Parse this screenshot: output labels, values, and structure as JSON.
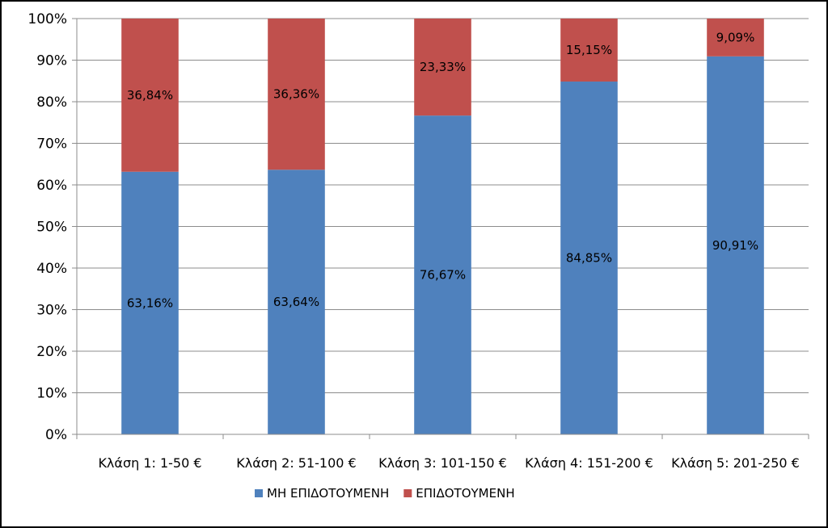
{
  "chart_data": {
    "type": "bar",
    "stacked": true,
    "categories": [
      "Κλάση 1:  1-50 €",
      "Κλάση 2:  51-100 €",
      "Κλάση 3:  101-150 €",
      "Κλάση 4:  151-200 €",
      "Κλάση 5:  201-250 €"
    ],
    "series": [
      {
        "name": "ΜΗ ΕΠΙΔΟΤΟΥΜΕΝΗ",
        "color": "#4f81bd",
        "values": [
          63.16,
          63.64,
          76.67,
          84.85,
          90.91
        ],
        "labels": [
          "63,16%",
          "63,64%",
          "76,67%",
          "84,85%",
          "90,91%"
        ]
      },
      {
        "name": "ΕΠΙΔΟΤΟΥΜΕΝΗ",
        "color": "#c0504d",
        "values": [
          36.84,
          36.36,
          23.33,
          15.15,
          9.09
        ],
        "labels": [
          "36,84%",
          "36,36%",
          "23,33%",
          "15,15%",
          "9,09%"
        ]
      }
    ],
    "ylim": [
      0,
      100
    ],
    "yticks": [
      "0%",
      "10%",
      "20%",
      "30%",
      "40%",
      "50%",
      "60%",
      "70%",
      "80%",
      "90%",
      "100%"
    ],
    "grid": true,
    "legend": "bottom"
  }
}
